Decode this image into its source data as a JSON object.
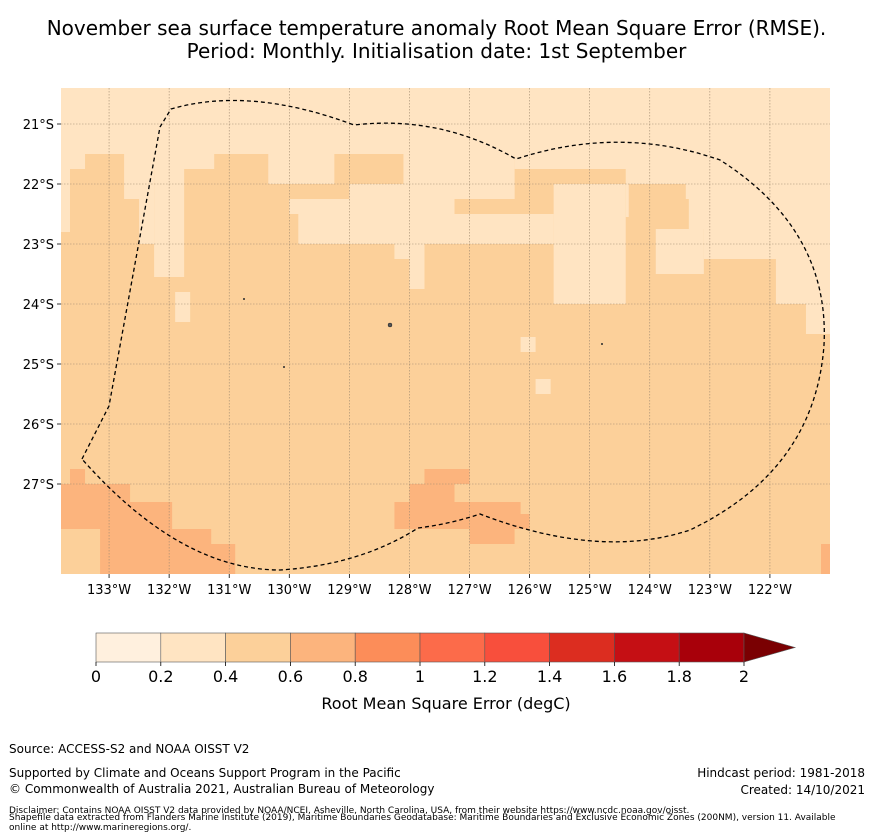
{
  "title_line1": "November sea surface temperature anomaly Root Mean Square Error (RMSE).",
  "title_line2": "Period: Monthly. Initialisation date: 1st September",
  "chart_data": {
    "type": "heatmap",
    "title": "November sea surface temperature anomaly Root Mean Square Error (RMSE). Period: Monthly. Initialisation date: 1st September",
    "xlabel": "",
    "ylabel": "",
    "x_ticks": [
      -133,
      -132,
      -131,
      -130,
      -129,
      -128,
      -127,
      -126,
      -125,
      -124,
      -123,
      -122
    ],
    "x_tick_labels": [
      "133°W",
      "132°W",
      "131°W",
      "130°W",
      "129°W",
      "128°W",
      "127°W",
      "126°W",
      "125°W",
      "124°W",
      "123°W",
      "122°W"
    ],
    "y_ticks": [
      -21,
      -22,
      -23,
      -24,
      -25,
      -26,
      -27
    ],
    "y_tick_labels": [
      "21°S",
      "22°S",
      "23°S",
      "24°S",
      "25°S",
      "26°S",
      "27°S"
    ],
    "xlim": [
      -133.8,
      -121.0
    ],
    "ylim": [
      -28.5,
      -20.4
    ],
    "grid": true,
    "colorbar": {
      "label": "Root Mean Square Error (degC)",
      "boundaries": [
        0,
        0.2,
        0.4,
        0.6,
        0.8,
        1,
        1.2,
        1.4,
        1.6,
        1.8,
        2
      ],
      "tick_labels": [
        "0",
        "0.2",
        "0.4",
        "0.6",
        "0.8",
        "1",
        "1.2",
        "1.4",
        "1.6",
        "1.8",
        "2"
      ],
      "colors": [
        "#fff0de",
        "#ffe4c2",
        "#fcd09a",
        "#fcb47d",
        "#fc8d59",
        "#fc6b4a",
        "#f84f3c",
        "#dc2d20",
        "#c50f14",
        "#a8000a"
      ],
      "extend_color": "#7a0002",
      "extend": "max"
    },
    "background_class": "0.4-0.6",
    "regions": [
      {
        "class": "0.2-0.4",
        "lon": [
          -133.8,
          -121.0
        ],
        "lat": [
          -21.5,
          -20.4
        ]
      },
      {
        "class": "0.2-0.4",
        "lon": [
          -133.8,
          -133.65
        ],
        "lat": [
          -22.8,
          -21.5
        ]
      },
      {
        "class": "0.2-0.4",
        "lon": [
          -133.8,
          -133.4
        ],
        "lat": [
          -21.75,
          -21.5
        ]
      },
      {
        "class": "0.2-0.4",
        "lon": [
          -133.15,
          -131.3
        ],
        "lat": [
          -21.5,
          -21.5
        ]
      },
      {
        "class": "0.2-0.4",
        "lon": [
          -132.75,
          -131.25
        ],
        "lat": [
          -21.75,
          -21.5
        ]
      },
      {
        "class": "0.2-0.4",
        "lon": [
          -132.75,
          -132.25
        ],
        "lat": [
          -22.25,
          -21.75
        ]
      },
      {
        "class": "0.2-0.4",
        "lon": [
          -132.5,
          -132.25
        ],
        "lat": [
          -23.0,
          -22.25
        ]
      },
      {
        "class": "0.2-0.4",
        "lon": [
          -132.25,
          -131.75
        ],
        "lat": [
          -23.55,
          -21.75
        ]
      },
      {
        "class": "0.2-0.4",
        "lon": [
          -131.9,
          -131.65
        ],
        "lat": [
          -24.3,
          -23.8
        ]
      },
      {
        "class": "0.2-0.4",
        "lon": [
          -130.35,
          -129.25
        ],
        "lat": [
          -22.0,
          -21.5
        ]
      },
      {
        "class": "0.2-0.4",
        "lon": [
          -128.1,
          -127.4
        ],
        "lat": [
          -22.0,
          -21.5
        ]
      },
      {
        "class": "0.2-0.4",
        "lon": [
          -129.0,
          -126.25
        ],
        "lat": [
          -22.25,
          -22.0
        ]
      },
      {
        "class": "0.2-0.4",
        "lon": [
          -127.4,
          -126.25
        ],
        "lat": [
          -22.25,
          -21.5
        ]
      },
      {
        "class": "0.2-0.4",
        "lon": [
          -126.25,
          -121.0
        ],
        "lat": [
          -21.75,
          -21.5
        ]
      },
      {
        "class": "0.2-0.4",
        "lon": [
          -128.85,
          -127.25
        ],
        "lat": [
          -22.5,
          -22.25
        ]
      },
      {
        "class": "0.2-0.4",
        "lon": [
          -129.85,
          -125.6
        ],
        "lat": [
          -23.0,
          -22.5
        ]
      },
      {
        "class": "0.2-0.4",
        "lon": [
          -130.0,
          -127.35
        ],
        "lat": [
          -22.5,
          -22.25
        ]
      },
      {
        "class": "0.2-0.4",
        "lon": [
          -128.25,
          -127.75
        ],
        "lat": [
          -23.25,
          -23.0
        ]
      },
      {
        "class": "0.2-0.4",
        "lon": [
          -128.0,
          -127.75
        ],
        "lat": [
          -23.75,
          -23.25
        ]
      },
      {
        "class": "0.2-0.4",
        "lon": [
          -125.6,
          -124.4
        ],
        "lat": [
          -24.0,
          -22.0
        ]
      },
      {
        "class": "0.2-0.4",
        "lon": [
          -124.4,
          -124.35
        ],
        "lat": [
          -22.55,
          -22.0
        ]
      },
      {
        "class": "0.2-0.4",
        "lon": [
          -124.4,
          -123.35
        ],
        "lat": [
          -22.0,
          -21.75
        ]
      },
      {
        "class": "0.2-0.4",
        "lon": [
          -123.4,
          -121.0
        ],
        "lat": [
          -22.25,
          -21.75
        ]
      },
      {
        "class": "0.2-0.4",
        "lon": [
          -123.35,
          -121.0
        ],
        "lat": [
          -22.75,
          -22.25
        ]
      },
      {
        "class": "0.2-0.4",
        "lon": [
          -123.9,
          -123.1
        ],
        "lat": [
          -23.5,
          -22.75
        ]
      },
      {
        "class": "0.2-0.4",
        "lon": [
          -123.1,
          -121.0
        ],
        "lat": [
          -23.25,
          -22.75
        ]
      },
      {
        "class": "0.2-0.4",
        "lon": [
          -121.9,
          -121.0
        ],
        "lat": [
          -24.0,
          -23.25
        ]
      },
      {
        "class": "0.2-0.4",
        "lon": [
          -121.4,
          -121.0
        ],
        "lat": [
          -24.5,
          -24.0
        ]
      },
      {
        "class": "0.2-0.4",
        "lon": [
          -126.15,
          -125.9
        ],
        "lat": [
          -24.8,
          -24.55
        ]
      },
      {
        "class": "0.2-0.4",
        "lon": [
          -125.9,
          -125.65
        ],
        "lat": [
          -25.5,
          -25.25
        ]
      },
      {
        "class": "0.6-0.8",
        "lon": [
          -133.65,
          -133.4
        ],
        "lat": [
          -27.0,
          -26.75
        ]
      },
      {
        "class": "0.6-0.8",
        "lon": [
          -133.8,
          -132.65
        ],
        "lat": [
          -27.3,
          -27.0
        ]
      },
      {
        "class": "0.6-0.8",
        "lon": [
          -133.8,
          -131.95
        ],
        "lat": [
          -27.75,
          -27.3
        ]
      },
      {
        "class": "0.6-0.8",
        "lon": [
          -133.15,
          -131.3
        ],
        "lat": [
          -28.0,
          -27.75
        ]
      },
      {
        "class": "0.6-0.8",
        "lon": [
          -133.15,
          -130.9
        ],
        "lat": [
          -28.5,
          -28.0
        ]
      },
      {
        "class": "0.6-0.8",
        "lon": [
          -128.0,
          -127.25
        ],
        "lat": [
          -27.3,
          -27.0
        ]
      },
      {
        "class": "0.6-0.8",
        "lon": [
          -127.75,
          -127.0
        ],
        "lat": [
          -27.0,
          -26.75
        ]
      },
      {
        "class": "0.6-0.8",
        "lon": [
          -128.25,
          -126.15
        ],
        "lat": [
          -27.5,
          -27.3
        ]
      },
      {
        "class": "0.6-0.8",
        "lon": [
          -128.25,
          -126.0
        ],
        "lat": [
          -27.75,
          -27.5
        ]
      },
      {
        "class": "0.6-0.8",
        "lon": [
          -127.0,
          -126.25
        ],
        "lat": [
          -28.0,
          -27.75
        ]
      },
      {
        "class": "0.6-0.8",
        "lon": [
          -121.15,
          -121.0
        ],
        "lat": [
          -28.5,
          -28.0
        ]
      }
    ],
    "annotations": [
      "dashed boundary: Maritime Boundaries and Exclusive Economic Zones (200NM)"
    ]
  },
  "footer": {
    "source": "Source: ACCESS-S2 and NOAA OISST V2",
    "supported": "Supported by Climate and Oceans Support Program in the Pacific",
    "copyright": "© Commonwealth of Australia 2021, Australian Bureau of Meteorology",
    "hindcast": "Hindcast period: 1981-2018",
    "created": "Created: 14/10/2021",
    "disclaimer1": "Disclaimer: Contains NOAA OISST V2 data provided by NOAA/NCEI, Asheville, North Carolina, USA, from their website https://www.ncdc.noaa.gov/oisst.",
    "disclaimer2": "Shapefile data extracted from Flanders Marine Institute (2019), Maritime Boundaries Geodatabase: Maritime Boundaries and Exclusive Economic Zones (200NM), version 11. Available online at http://www.marineregions.org/."
  }
}
